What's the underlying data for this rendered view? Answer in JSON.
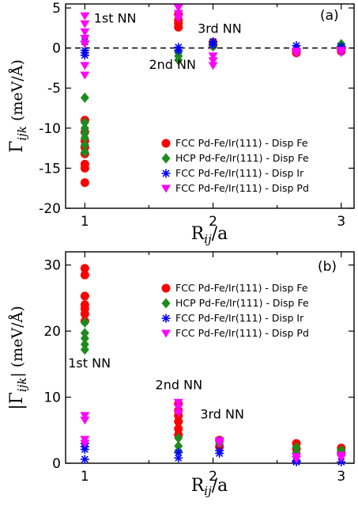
{
  "chart_data": [
    {
      "type": "scatter",
      "panel_label": "(a)",
      "xlabel": "R_ij/a",
      "ylabel": "Γ_ijk (meV/Å)",
      "xlim": [
        0.85,
        3.1
      ],
      "ylim": [
        -20,
        5.5
      ],
      "xticks": [
        1,
        2,
        3
      ],
      "yticks": [
        5,
        0,
        -5,
        -10,
        -15,
        -20
      ],
      "zero_line": true,
      "legend_position": "bottom-right",
      "annotations": [
        {
          "text": "1st NN",
          "x": 1.07,
          "y": 3.2
        },
        {
          "text": "2nd NN",
          "x": 1.5,
          "y": -2.6
        },
        {
          "text": "3rd NN",
          "x": 1.88,
          "y": 1.9
        }
      ],
      "series": [
        {
          "name": "FCC Pd-Fe/Ir(111) - Disp Fe",
          "color": "#ff0000",
          "marker": "circle",
          "points": [
            [
              1,
              -9.0
            ],
            [
              1,
              -10.5
            ],
            [
              1,
              -11.6
            ],
            [
              1,
              -12.4
            ],
            [
              1,
              -13.2
            ],
            [
              1,
              -14.5
            ],
            [
              1,
              -15.0
            ],
            [
              1,
              -16.8
            ],
            [
              1.73,
              2.6
            ],
            [
              1.73,
              3.1
            ],
            [
              1.73,
              3.5
            ],
            [
              1.73,
              4.2
            ],
            [
              2,
              0.5
            ],
            [
              2,
              0.3
            ],
            [
              2,
              0.7
            ],
            [
              2.65,
              -0.3
            ],
            [
              2.65,
              -0.5
            ],
            [
              2.65,
              -0.6
            ],
            [
              3,
              0.1
            ],
            [
              3,
              -0.2
            ],
            [
              3,
              -0.4
            ]
          ]
        },
        {
          "name": "HCP Pd-Fe/Ir(111) - Disp Fe",
          "color": "#1e8b1e",
          "marker": "diamond",
          "points": [
            [
              1,
              -6.2
            ],
            [
              1,
              -9.3
            ],
            [
              1,
              -10.0
            ],
            [
              1,
              -10.6
            ],
            [
              1,
              -11.2
            ],
            [
              1,
              -12.1
            ],
            [
              1,
              -13.0
            ],
            [
              1.73,
              -0.5
            ],
            [
              1.73,
              -1.0
            ],
            [
              1.73,
              -1.5
            ],
            [
              2,
              0.6
            ],
            [
              2,
              0.2
            ],
            [
              2.65,
              -0.1
            ],
            [
              2.65,
              -0.4
            ],
            [
              3,
              0.5
            ],
            [
              3,
              0.3
            ]
          ]
        },
        {
          "name": "FCC Pd-Fe/Ir(111) - Disp Ir",
          "color": "#0000ff",
          "marker": "asterisk",
          "points": [
            [
              1,
              0.8
            ],
            [
              1,
              -0.3
            ],
            [
              1,
              -0.6
            ],
            [
              1,
              -0.9
            ],
            [
              1.73,
              0.1
            ],
            [
              1.73,
              -0.3
            ],
            [
              2,
              0.8
            ],
            [
              2,
              0.4
            ],
            [
              2.65,
              0.3
            ],
            [
              2.65,
              -0.1
            ],
            [
              3,
              0.2
            ]
          ]
        },
        {
          "name": "FCC Pd-Fe/Ir(111) - Disp Pd",
          "color": "#ff00ff",
          "marker": "triangle-down",
          "points": [
            [
              1,
              4.0
            ],
            [
              1,
              3.0
            ],
            [
              1,
              2.0
            ],
            [
              1,
              1.2
            ],
            [
              1,
              0.5
            ],
            [
              1,
              -2.2
            ],
            [
              1,
              -3.4
            ],
            [
              1.73,
              5.0
            ],
            [
              1.73,
              4.3
            ],
            [
              1.73,
              3.7
            ],
            [
              2,
              -1.0
            ],
            [
              2,
              -1.6
            ],
            [
              2,
              -2.2
            ],
            [
              2.65,
              -0.4
            ],
            [
              2.65,
              -0.7
            ],
            [
              3,
              -0.3
            ],
            [
              3,
              -0.6
            ]
          ]
        }
      ]
    },
    {
      "type": "scatter",
      "panel_label": "(b)",
      "xlabel": "R_ij/a",
      "ylabel": "|Γ_ijk| (meV/Å)",
      "xlim": [
        0.85,
        3.1
      ],
      "ylim": [
        0,
        32
      ],
      "xticks": [
        1,
        2,
        3
      ],
      "yticks": [
        0,
        10,
        20,
        30
      ],
      "legend_position": "top-right",
      "annotations": [
        {
          "text": "1st NN",
          "x": 0.87,
          "y": 14.5
        },
        {
          "text": "2nd NN",
          "x": 1.55,
          "y": 11.2
        },
        {
          "text": "3rd NN",
          "x": 1.9,
          "y": 6.8
        }
      ],
      "series": [
        {
          "name": "FCC Pd-Fe/Ir(111) - Disp Fe",
          "color": "#ff0000",
          "marker": "circle",
          "points": [
            [
              1,
              29.5
            ],
            [
              1,
              28.5
            ],
            [
              1,
              25.3
            ],
            [
              1,
              24.0
            ],
            [
              1,
              23.4
            ],
            [
              1,
              22.6
            ],
            [
              1,
              21.5
            ],
            [
              1.73,
              9.0
            ],
            [
              1.73,
              8.0
            ],
            [
              1.73,
              7.2
            ],
            [
              1.73,
              6.3
            ],
            [
              1.73,
              5.2
            ],
            [
              1.73,
              4.3
            ],
            [
              2.05,
              3.5
            ],
            [
              2.05,
              2.5
            ],
            [
              2.65,
              3.0
            ],
            [
              2.65,
              2.2
            ],
            [
              3,
              2.3
            ],
            [
              3,
              1.6
            ]
          ]
        },
        {
          "name": "HCP Pd-Fe/Ir(111) - Disp Fe",
          "color": "#1e8b1e",
          "marker": "diamond",
          "points": [
            [
              1,
              21.3
            ],
            [
              1,
              19.7
            ],
            [
              1,
              18.9
            ],
            [
              1,
              18.0
            ],
            [
              1,
              17.2
            ],
            [
              1.73,
              3.8
            ],
            [
              1.73,
              2.6
            ],
            [
              1.73,
              1.8
            ],
            [
              2.05,
              3.4
            ],
            [
              2.05,
              3.0
            ],
            [
              2.65,
              2.4
            ],
            [
              2.65,
              1.6
            ],
            [
              3,
              2.0
            ],
            [
              3,
              1.4
            ]
          ]
        },
        {
          "name": "FCC Pd-Fe/Ir(111) - Disp Ir",
          "color": "#0000ff",
          "marker": "asterisk",
          "points": [
            [
              1,
              3.0
            ],
            [
              1,
              2.5
            ],
            [
              1,
              2.1
            ],
            [
              1,
              0.6
            ],
            [
              1.73,
              1.6
            ],
            [
              1.73,
              0.8
            ],
            [
              2.05,
              1.9
            ],
            [
              2.05,
              1.5
            ],
            [
              2.65,
              0.4
            ],
            [
              2.65,
              0.2
            ],
            [
              3,
              0.2
            ]
          ]
        },
        {
          "name": "FCC Pd-Fe/Ir(111) - Disp Pd",
          "color": "#ff00ff",
          "marker": "triangle-down",
          "points": [
            [
              1,
              7.2
            ],
            [
              1,
              6.5
            ],
            [
              1,
              3.6
            ],
            [
              1,
              3.0
            ],
            [
              1.73,
              9.2
            ],
            [
              1.73,
              8.4
            ],
            [
              1.73,
              7.6
            ],
            [
              2.05,
              3.4
            ],
            [
              2.05,
              3.0
            ],
            [
              2.65,
              1.0
            ],
            [
              2.65,
              0.6
            ],
            [
              3,
              1.2
            ],
            [
              3,
              0.8
            ]
          ]
        }
      ]
    }
  ]
}
